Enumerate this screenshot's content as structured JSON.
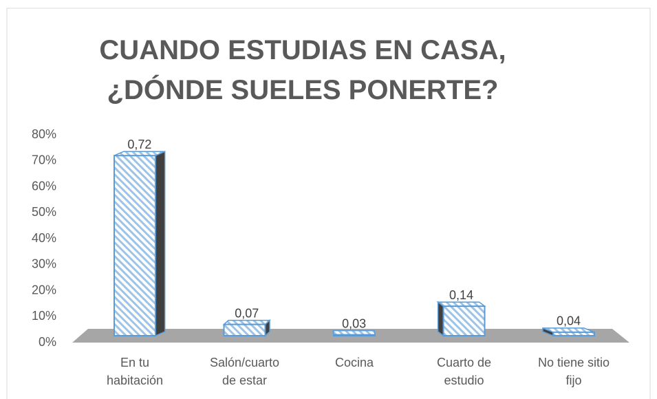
{
  "chart_data": {
    "type": "bar3d",
    "title": "CUANDO ESTUDIAS EN CASA, ¿DÓNDE SUELES PONERTE?",
    "categories": [
      "En tu habitación",
      "Salón/cuarto de estar",
      "Cocina",
      "Cuarto de estudio",
      "No tiene sitio fijo"
    ],
    "values": [
      72,
      7,
      3,
      14,
      4
    ],
    "value_labels": [
      "0,72",
      "0,07",
      "0,03",
      "0,14",
      "0,04"
    ],
    "color": "#5b9bd5",
    "ylim": [
      0,
      80
    ],
    "yticks": [
      {
        "value": 0,
        "label": "0%"
      },
      {
        "value": 10,
        "label": "10%"
      },
      {
        "value": 20,
        "label": "20%"
      },
      {
        "value": 30,
        "label": "30%"
      },
      {
        "value": 40,
        "label": "40%"
      },
      {
        "value": 50,
        "label": "50%"
      },
      {
        "value": 60,
        "label": "60%"
      },
      {
        "value": 70,
        "label": "70%"
      },
      {
        "value": 80,
        "label": "80%"
      }
    ],
    "grid": false
  }
}
